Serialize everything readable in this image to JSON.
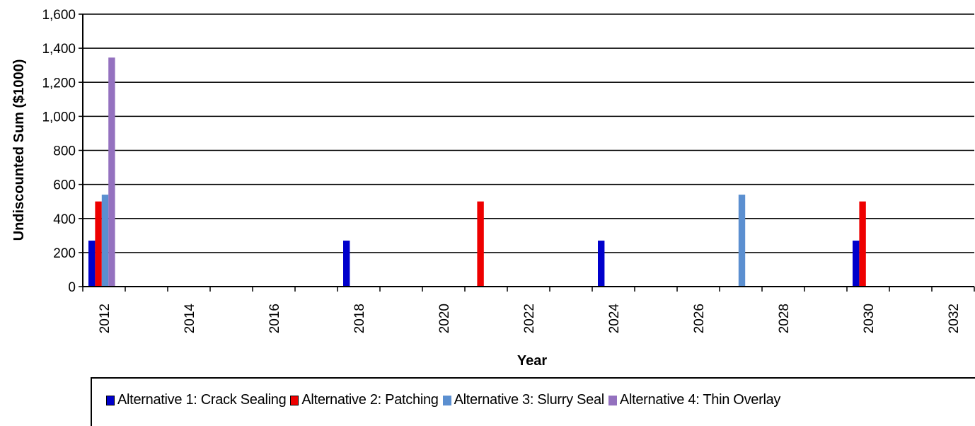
{
  "chart_data": {
    "type": "bar",
    "title": "",
    "xlabel": "Year",
    "ylabel": "Undiscounted Sum ($1000)",
    "ylim": [
      0,
      1600
    ],
    "yticks": [
      0,
      200,
      400,
      600,
      800,
      1000,
      1200,
      1400,
      1600
    ],
    "yticklabels": [
      "0",
      "200",
      "400",
      "600",
      "800",
      "1,000",
      "1,200",
      "1,400",
      "1,600"
    ],
    "categories": [
      "2012",
      "2013",
      "2014",
      "2015",
      "2016",
      "2017",
      "2018",
      "2019",
      "2020",
      "2021",
      "2022",
      "2023",
      "2024",
      "2025",
      "2026",
      "2027",
      "2028",
      "2029",
      "2030",
      "2031",
      "2032"
    ],
    "xticklabels": [
      "2012",
      "",
      "2014",
      "",
      "2016",
      "",
      "2018",
      "",
      "2020",
      "",
      "2022",
      "",
      "2024",
      "",
      "2026",
      "",
      "2028",
      "",
      "2030",
      "",
      "2032"
    ],
    "grid": true,
    "legend_position": "bottom",
    "series": [
      {
        "name": "Alternative 1: Crack Sealing",
        "color": "#0000cc",
        "values": [
          270,
          0,
          0,
          0,
          0,
          0,
          270,
          0,
          0,
          0,
          0,
          0,
          270,
          0,
          0,
          0,
          0,
          0,
          270,
          0,
          0
        ]
      },
      {
        "name": "Alternative 2: Patching",
        "color": "#ee0000",
        "values": [
          500,
          0,
          0,
          0,
          0,
          0,
          0,
          0,
          0,
          500,
          0,
          0,
          0,
          0,
          0,
          0,
          0,
          0,
          500,
          0,
          0
        ]
      },
      {
        "name": "Alternative 3: Slurry Seal",
        "color": "#5b8fd0",
        "values": [
          540,
          0,
          0,
          0,
          0,
          0,
          0,
          0,
          0,
          0,
          0,
          0,
          0,
          0,
          0,
          540,
          0,
          0,
          0,
          0,
          0
        ]
      },
      {
        "name": "Alternative 4: Thin Overlay",
        "color": "#9471bf",
        "values": [
          1345,
          0,
          0,
          0,
          0,
          0,
          0,
          0,
          0,
          0,
          0,
          0,
          0,
          0,
          0,
          0,
          0,
          0,
          0,
          0,
          0
        ]
      }
    ]
  }
}
